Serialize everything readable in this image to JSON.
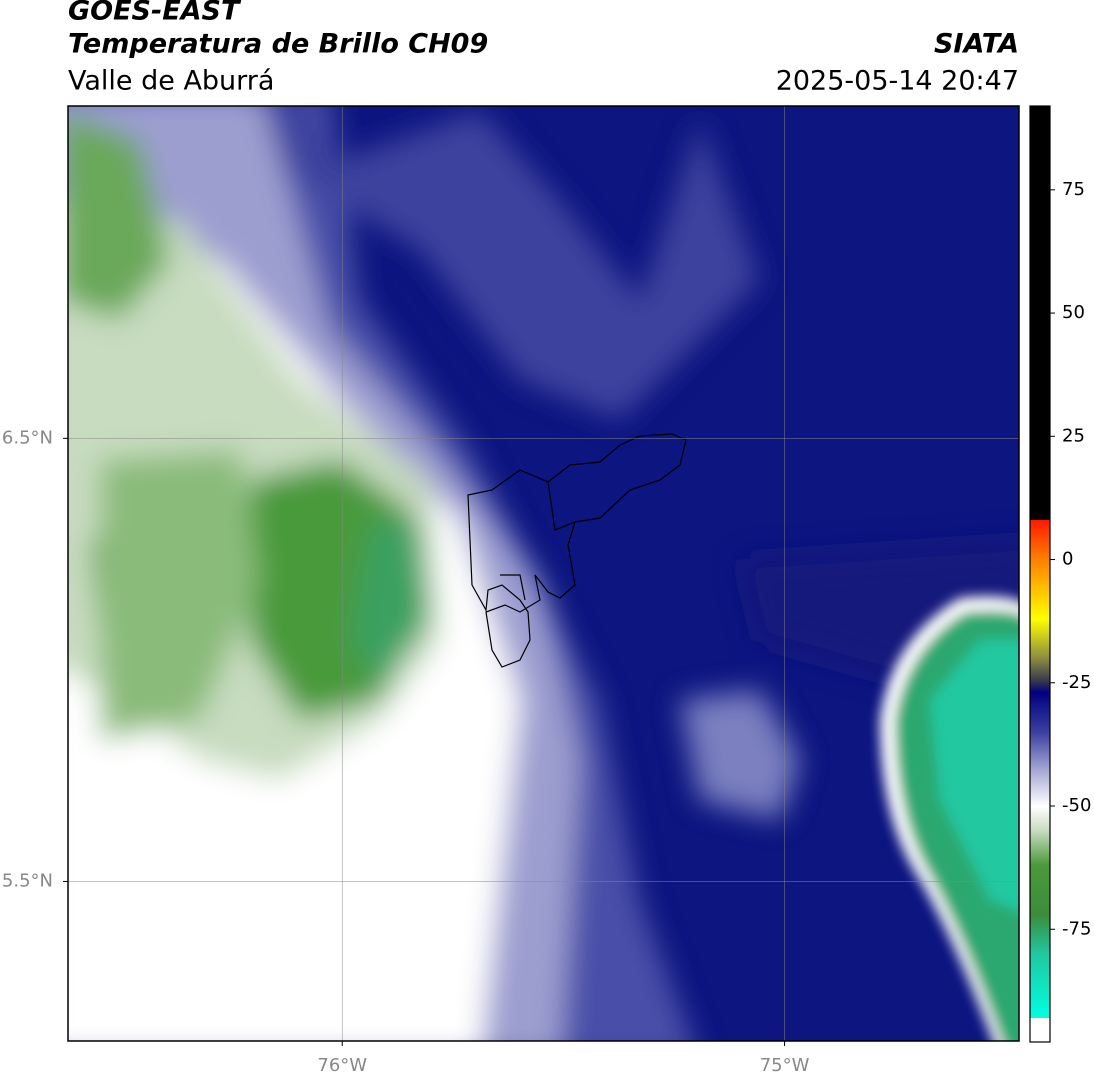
{
  "chart_data": {
    "type": "map",
    "title": "GOES-EAST",
    "subtitle": "Temperatura de Brillo CH09",
    "region": "Valle de Aburrá",
    "source": "SIATA",
    "timestamp": "2025-05-14 20:47",
    "xlim": [
      -76.62,
      -74.47
    ],
    "ylim": [
      5.14,
      7.25
    ],
    "xticks": [
      {
        "value": -76,
        "label": "76°W"
      },
      {
        "value": -75,
        "label": "75°W"
      }
    ],
    "yticks": [
      {
        "value": 6.5,
        "label": "6.5°N"
      },
      {
        "value": 5.5,
        "label": "5.5°N"
      }
    ],
    "grid": true,
    "colorbar": {
      "lim": [
        -93,
        92
      ],
      "ticks": [
        75,
        50,
        25,
        0,
        -25,
        -50,
        -75
      ],
      "under_color": "#ffffff",
      "stops": [
        {
          "value": 92,
          "color": "#000000"
        },
        {
          "value": 8,
          "color": "#000000"
        },
        {
          "value": 8,
          "color": "#ff1a00"
        },
        {
          "value": 0,
          "color": "#ff8000"
        },
        {
          "value": -12,
          "color": "#ffff00"
        },
        {
          "value": -20,
          "color": "#8c8c40"
        },
        {
          "value": -25,
          "color": "#303050"
        },
        {
          "value": -27,
          "color": "#000080"
        },
        {
          "value": -35,
          "color": "#3a3fa0"
        },
        {
          "value": -42,
          "color": "#9c9ed0"
        },
        {
          "value": -50,
          "color": "#ffffff"
        },
        {
          "value": -55,
          "color": "#c8dcc0"
        },
        {
          "value": -62,
          "color": "#4a9a3a"
        },
        {
          "value": -72,
          "color": "#3c8c3c"
        },
        {
          "value": -80,
          "color": "#20c8a0"
        },
        {
          "value": -93,
          "color": "#00ffe0"
        }
      ]
    }
  }
}
